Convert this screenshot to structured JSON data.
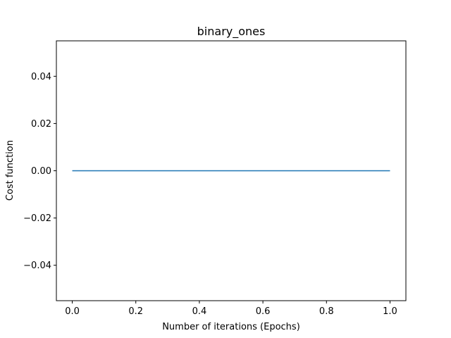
{
  "chart_data": {
    "type": "line",
    "title": "binary_ones",
    "xlabel": "Number of iterations (Epochs)",
    "ylabel": "Cost function",
    "xlim": [
      -0.05,
      1.05
    ],
    "ylim": [
      -0.055,
      0.055
    ],
    "xticks": [
      0.0,
      0.2,
      0.4,
      0.6,
      0.8,
      1.0
    ],
    "xtick_labels": [
      "0.0",
      "0.2",
      "0.4",
      "0.6",
      "0.8",
      "1.0"
    ],
    "yticks": [
      -0.04,
      -0.02,
      0.0,
      0.02,
      0.04
    ],
    "ytick_labels": [
      "−0.04",
      "−0.02",
      "0.00",
      "0.02",
      "0.04"
    ],
    "grid": false,
    "series": [
      {
        "color": "#1f77b4",
        "x": [
          0,
          1
        ],
        "y": [
          0.0,
          0.0
        ]
      }
    ]
  }
}
